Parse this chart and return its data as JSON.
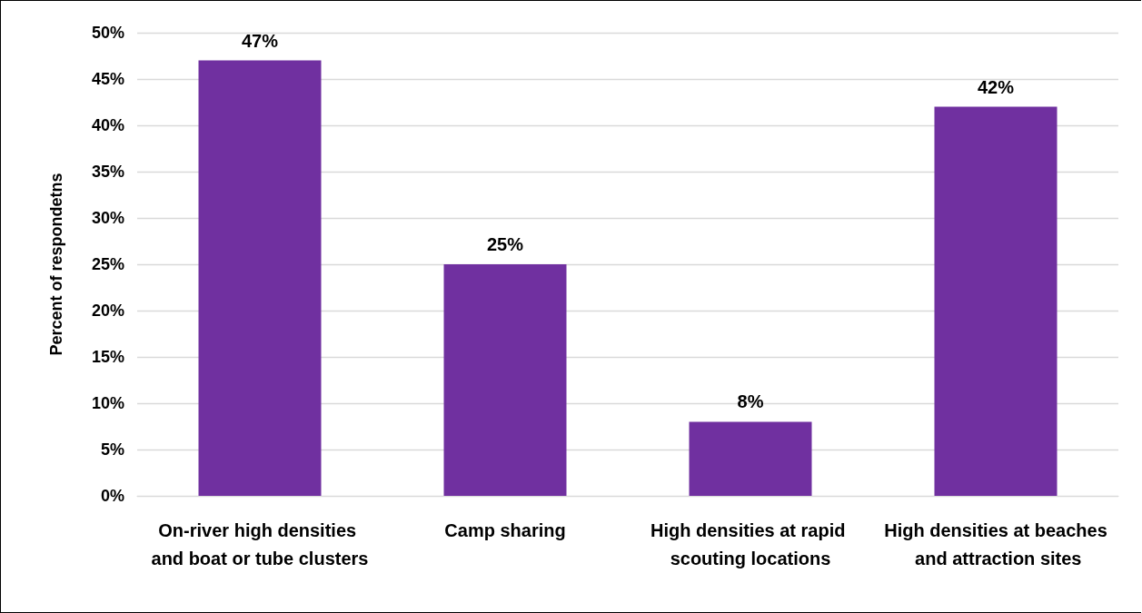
{
  "chart_data": {
    "type": "bar",
    "ylabel": "Percent of respondetns",
    "categories": [
      "On-river high densities and boat or tube clusters",
      "Camp sharing",
      "High densities at rapid scouting locations",
      "High densities at beaches and attraction sites"
    ],
    "values": [
      47,
      25,
      8,
      42
    ],
    "color": "#7030a0",
    "value_labels": [
      "47%",
      "25%",
      "8%",
      "42%"
    ],
    "ylim": [
      0,
      50
    ],
    "yticks": [
      {
        "value": 0,
        "label": "0%"
      },
      {
        "value": 5,
        "label": "5%"
      },
      {
        "value": 10,
        "label": "10%"
      },
      {
        "value": 15,
        "label": "15%"
      },
      {
        "value": 20,
        "label": "20%"
      },
      {
        "value": 25,
        "label": "25%"
      },
      {
        "value": 30,
        "label": "30%"
      },
      {
        "value": 35,
        "label": "35%"
      },
      {
        "value": 40,
        "label": "40%"
      },
      {
        "value": 45,
        "label": "45%"
      },
      {
        "value": 50,
        "label": "50%"
      }
    ],
    "grid": "y"
  }
}
